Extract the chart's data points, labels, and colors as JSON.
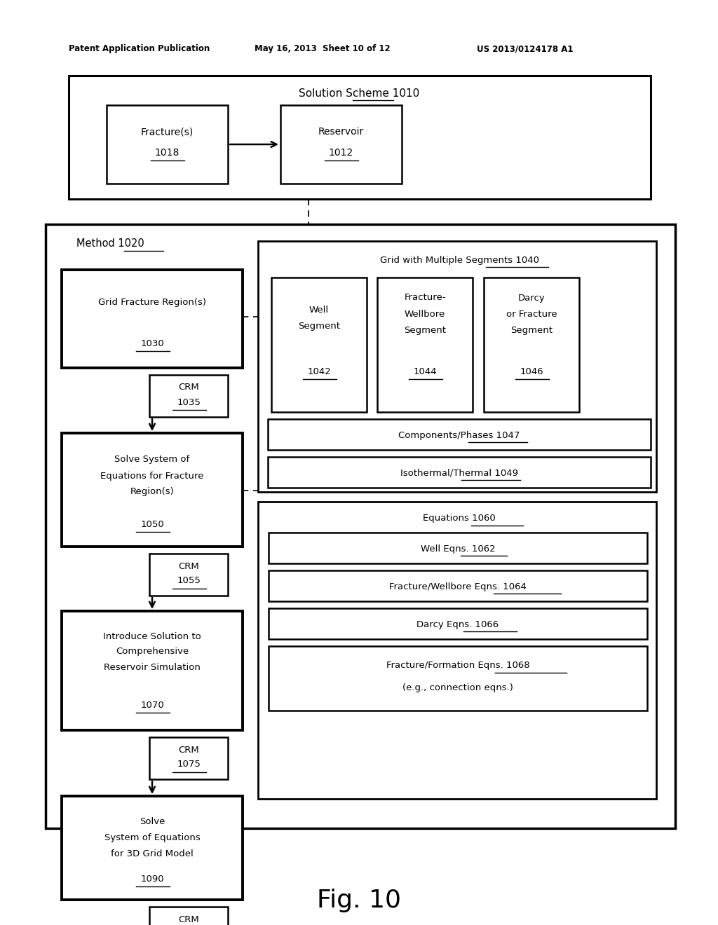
{
  "header_left": "Patent Application Publication",
  "header_mid": "May 16, 2013  Sheet 10 of 12",
  "header_right": "US 2013/0124178 A1",
  "fig_label": "Fig. 10",
  "bg_color": "#ffffff"
}
